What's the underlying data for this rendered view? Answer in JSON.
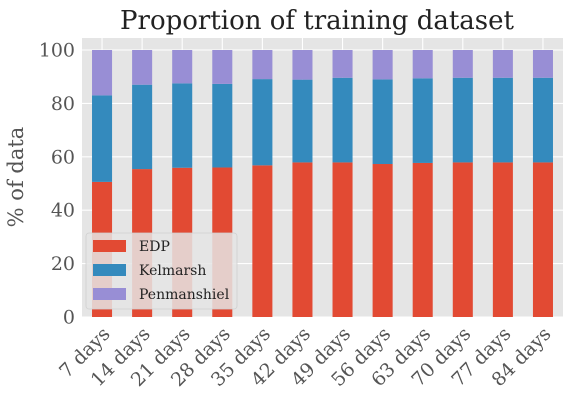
{
  "chart_data": {
    "type": "bar",
    "stacked": true,
    "title": "Proportion of training dataset",
    "xlabel": "",
    "ylabel": "% of data",
    "ylim": [
      0,
      100
    ],
    "yticks": [
      "0",
      "20",
      "40",
      "60",
      "80",
      "100"
    ],
    "grid": true,
    "legend_position": "lower-left",
    "categories": [
      "7 days",
      "14 days",
      "21 days",
      "28 days",
      "35 days",
      "42 days",
      "49 days",
      "56 days",
      "63 days",
      "70 days",
      "77 days",
      "84 days"
    ],
    "series": [
      {
        "name": "EDP",
        "color": "#E24A33",
        "values": [
          50.6,
          55.4,
          55.9,
          56.0,
          56.8,
          57.9,
          57.9,
          57.3,
          57.7,
          57.9,
          57.9,
          57.9
        ]
      },
      {
        "name": "Kelmarsh",
        "color": "#348ABD",
        "values": [
          32.4,
          31.6,
          31.6,
          31.3,
          32.3,
          31.0,
          31.7,
          31.7,
          31.7,
          31.7,
          31.7,
          31.7
        ]
      },
      {
        "name": "Penmanshiel",
        "color": "#988ED5",
        "values": [
          17.0,
          13.0,
          12.5,
          12.7,
          10.9,
          11.1,
          10.4,
          11.0,
          10.6,
          10.4,
          10.4,
          10.4
        ]
      }
    ]
  }
}
